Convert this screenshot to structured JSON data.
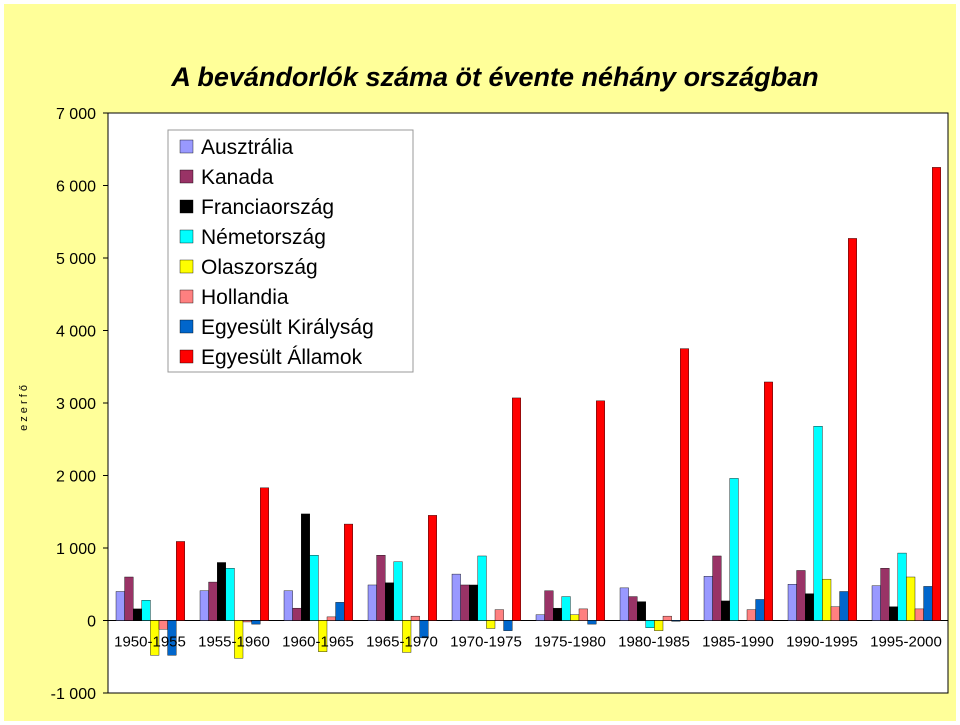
{
  "chart_data": {
    "type": "bar",
    "title": "A bevándorlók száma öt évente néhány országban",
    "ylabel": "e z e r  f ő",
    "ylim": [
      -1000,
      7000
    ],
    "yticks": [
      -1000,
      0,
      1000,
      2000,
      3000,
      4000,
      5000,
      6000,
      7000
    ],
    "ytick_labels": [
      "-1 000",
      "0",
      "1 000",
      "2 000",
      "3 000",
      "4 000",
      "5 000",
      "6 000",
      "7 000"
    ],
    "categories": [
      "1950-1955",
      "1955-1960",
      "1960-1965",
      "1965-1970",
      "1970-1975",
      "1975-1980",
      "1980-1985",
      "1985-1990",
      "1990-1995",
      "1995-2000"
    ],
    "legend_position": "top-left",
    "grid": false,
    "series": [
      {
        "name": "Ausztrália",
        "color": "#9999ff",
        "values": [
          400,
          410,
          410,
          490,
          640,
          80,
          450,
          610,
          500,
          480
        ]
      },
      {
        "name": "Kanada",
        "color": "#993366",
        "values": [
          600,
          530,
          170,
          900,
          490,
          410,
          330,
          890,
          690,
          720
        ]
      },
      {
        "name": "Franciaország",
        "color": "#000000",
        "values": [
          160,
          800,
          1470,
          520,
          490,
          170,
          260,
          270,
          370,
          190
        ]
      },
      {
        "name": "Németország",
        "color": "#00ffff",
        "values": [
          280,
          720,
          900,
          810,
          890,
          330,
          -100,
          1960,
          2680,
          930
        ]
      },
      {
        "name": "Olaszország",
        "color": "#ffff00",
        "values": [
          -480,
          -520,
          -430,
          -440,
          -110,
          80,
          -140,
          0,
          570,
          600
        ]
      },
      {
        "name": "Hollandia",
        "color": "#ff8080",
        "values": [
          -120,
          -20,
          50,
          60,
          150,
          160,
          60,
          150,
          190,
          160
        ]
      },
      {
        "name": "Egyesült Királyság",
        "color": "#0066cc",
        "values": [
          -480,
          -50,
          250,
          -240,
          -140,
          -50,
          -10,
          290,
          400,
          470
        ]
      },
      {
        "name": "Egyesült Államok",
        "color": "#ff0000",
        "values": [
          1090,
          1830,
          1330,
          1450,
          3070,
          3030,
          3750,
          3290,
          5270,
          6250
        ]
      }
    ]
  }
}
